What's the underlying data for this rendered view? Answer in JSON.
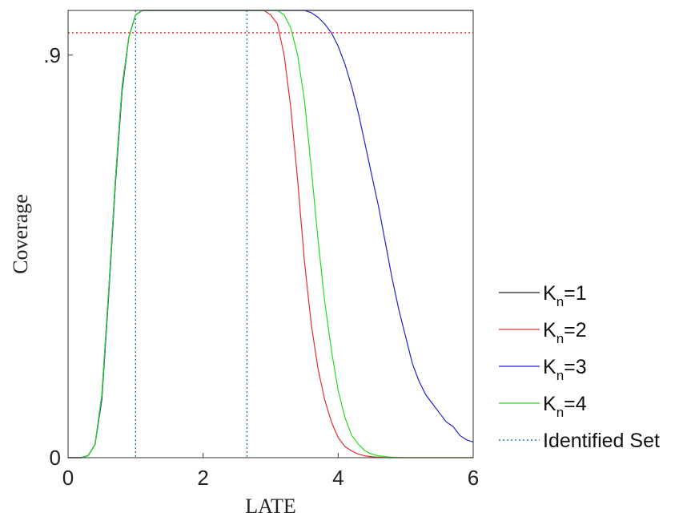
{
  "chart_data": {
    "type": "line",
    "title": "",
    "xlabel": "LATE",
    "ylabel": "Coverage",
    "xlim": [
      0,
      6
    ],
    "ylim": [
      0,
      1
    ],
    "xticks": [
      {
        "value": 0,
        "label": "0"
      },
      {
        "value": 2,
        "label": "2"
      },
      {
        "value": 4,
        "label": "4"
      },
      {
        "value": 6,
        "label": "6"
      }
    ],
    "yticks": [
      {
        "value": 0,
        "label": "0"
      },
      {
        "value": 0.9,
        "label": ".9"
      }
    ],
    "grid": false,
    "legend_position": "right",
    "reference_line": {
      "y": 0.95,
      "color": "#e03030",
      "style": "dotted"
    },
    "identified_set": {
      "name": "Identified Set",
      "x": [
        1.0,
        2.65
      ],
      "color": "#2a7fa8",
      "style": "dotted"
    },
    "series": [
      {
        "name": "K_n=1",
        "color": "#222222",
        "x": [
          0,
          0.2,
          0.3,
          0.4,
          0.5,
          0.6,
          0.7,
          0.8,
          0.9,
          1.0,
          1.1,
          1.2,
          6.0
        ],
        "y": [
          0,
          0,
          0.005,
          0.03,
          0.14,
          0.37,
          0.62,
          0.83,
          0.94,
          0.99,
          1.0,
          1.0,
          1.0
        ]
      },
      {
        "name": "K_n=2",
        "color": "#e03030",
        "x": [
          0,
          0.2,
          0.3,
          0.4,
          0.5,
          0.6,
          0.7,
          0.8,
          0.9,
          1.0,
          1.1,
          1.2,
          2.9,
          3.0,
          3.1,
          3.2,
          3.3,
          3.4,
          3.5,
          3.6,
          3.7,
          3.8,
          3.9,
          4.0,
          4.1,
          4.2,
          4.3,
          4.4,
          4.5,
          4.7,
          6.0
        ],
        "y": [
          0,
          0,
          0.005,
          0.03,
          0.13,
          0.36,
          0.61,
          0.82,
          0.94,
          0.99,
          1.0,
          1.0,
          1.0,
          0.99,
          0.97,
          0.9,
          0.78,
          0.62,
          0.44,
          0.3,
          0.2,
          0.13,
          0.08,
          0.045,
          0.025,
          0.015,
          0.008,
          0.004,
          0.002,
          0.0,
          0.0
        ]
      },
      {
        "name": "K_n=3",
        "color": "#2222cc",
        "x": [
          0,
          0.2,
          0.3,
          0.4,
          0.5,
          0.6,
          0.7,
          0.8,
          0.9,
          1.0,
          1.1,
          1.2,
          3.5,
          3.6,
          3.7,
          3.8,
          3.9,
          4.0,
          4.1,
          4.2,
          4.3,
          4.4,
          4.5,
          4.6,
          4.7,
          4.8,
          4.9,
          5.0,
          5.1,
          5.2,
          5.3,
          5.4,
          5.5,
          5.6,
          5.7,
          5.8,
          5.9,
          6.0
        ],
        "y": [
          0,
          0,
          0.005,
          0.03,
          0.13,
          0.36,
          0.61,
          0.82,
          0.94,
          0.99,
          1.0,
          1.0,
          1.0,
          0.995,
          0.985,
          0.97,
          0.95,
          0.92,
          0.88,
          0.83,
          0.77,
          0.7,
          0.63,
          0.56,
          0.48,
          0.4,
          0.33,
          0.27,
          0.21,
          0.17,
          0.14,
          0.12,
          0.1,
          0.08,
          0.07,
          0.05,
          0.04,
          0.035
        ]
      },
      {
        "name": "K_n=4",
        "color": "#22dd22",
        "x": [
          0,
          0.2,
          0.3,
          0.4,
          0.5,
          0.6,
          0.7,
          0.8,
          0.9,
          1.0,
          1.1,
          1.2,
          3.1,
          3.2,
          3.3,
          3.4,
          3.5,
          3.6,
          3.7,
          3.8,
          3.9,
          4.0,
          4.1,
          4.2,
          4.3,
          4.4,
          4.5,
          4.6,
          4.8,
          5.0,
          6.0
        ],
        "y": [
          0,
          0,
          0.005,
          0.03,
          0.14,
          0.37,
          0.62,
          0.83,
          0.94,
          0.99,
          1.0,
          1.0,
          1.0,
          0.99,
          0.96,
          0.9,
          0.8,
          0.65,
          0.49,
          0.35,
          0.24,
          0.15,
          0.09,
          0.05,
          0.03,
          0.015,
          0.008,
          0.004,
          0.001,
          0.0,
          0.0
        ]
      }
    ]
  }
}
